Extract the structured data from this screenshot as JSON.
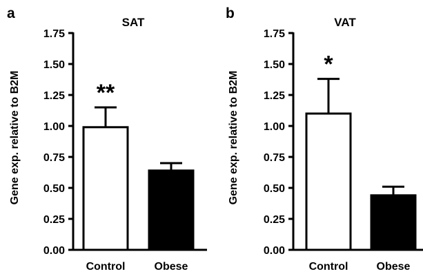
{
  "chart_data": [
    {
      "panel_label": "a",
      "type": "bar",
      "title": "SAT",
      "ylabel": "Gene exp. relative to B2M",
      "xlabel": "",
      "categories": [
        "Control",
        "Obese"
      ],
      "values": [
        0.99,
        0.64
      ],
      "errors": [
        0.16,
        0.06
      ],
      "significance": [
        "**",
        ""
      ],
      "bar_fills": [
        "#ffffff",
        "#000000"
      ],
      "ylim": [
        0,
        1.75
      ],
      "yticks": [
        "0.00",
        "0.25",
        "0.50",
        "0.75",
        "1.00",
        "1.25",
        "1.50",
        "1.75"
      ],
      "grid": false
    },
    {
      "panel_label": "b",
      "type": "bar",
      "title": "VAT",
      "ylabel": "Gene exp. relative to B2M",
      "xlabel": "",
      "categories": [
        "Control",
        "Obese"
      ],
      "values": [
        1.1,
        0.44
      ],
      "errors": [
        0.28,
        0.07
      ],
      "significance": [
        "*",
        ""
      ],
      "bar_fills": [
        "#ffffff",
        "#000000"
      ],
      "ylim": [
        0,
        1.75
      ],
      "yticks": [
        "0.00",
        "0.25",
        "0.50",
        "0.75",
        "1.00",
        "1.25",
        "1.50",
        "1.75"
      ],
      "grid": false
    }
  ]
}
